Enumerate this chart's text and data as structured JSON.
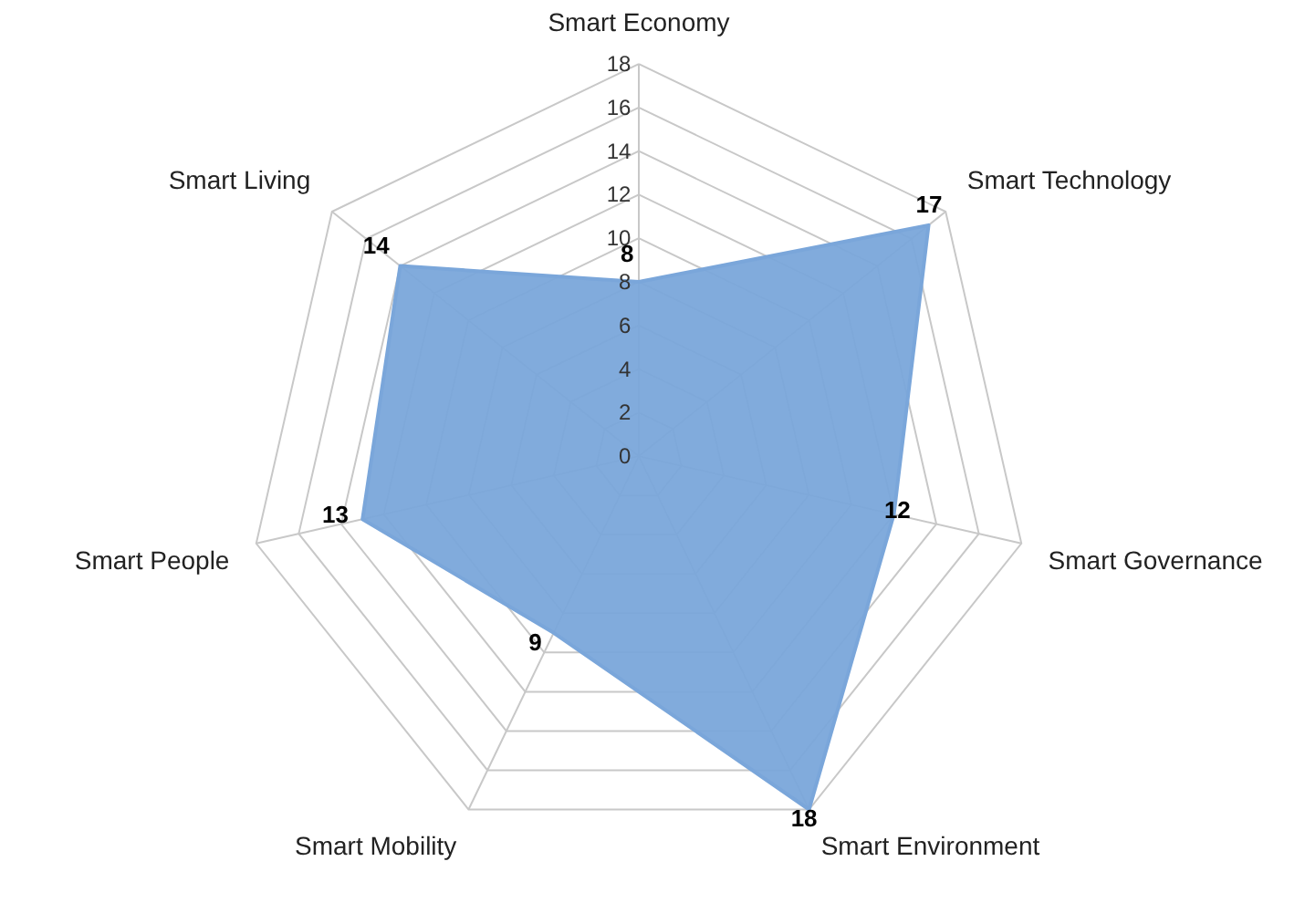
{
  "chart_data": {
    "type": "radar",
    "categories": [
      "Smart Economy",
      "Smart Technology",
      "Smart Governance",
      "Smart Environment",
      "Smart Mobility",
      "Smart People",
      "Smart Living"
    ],
    "series": [
      {
        "color": "#7aa6da",
        "values": [
          8,
          17,
          12,
          18,
          9,
          13,
          14
        ]
      }
    ],
    "ylim": [
      0,
      18
    ],
    "yticks": [
      0,
      2,
      4,
      6,
      8,
      10,
      12,
      14,
      16,
      18
    ],
    "data_labels": true,
    "grid": true
  }
}
